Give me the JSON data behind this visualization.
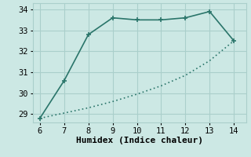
{
  "upper_x": [
    6,
    7,
    8,
    9,
    10,
    11,
    12,
    13,
    14
  ],
  "upper_y": [
    28.8,
    30.6,
    32.8,
    33.6,
    33.5,
    33.5,
    33.6,
    33.9,
    32.5
  ],
  "lower_x": [
    6,
    7,
    8,
    9,
    10,
    11,
    12,
    13,
    14
  ],
  "lower_y": [
    28.8,
    29.05,
    29.3,
    29.6,
    29.95,
    30.35,
    30.85,
    31.55,
    32.5
  ],
  "line_color": "#2a756a",
  "bg_color": "#cce8e4",
  "grid_color": "#aacfcb",
  "xlabel": "Humidex (Indice chaleur)",
  "xlim": [
    5.7,
    14.5
  ],
  "ylim": [
    28.6,
    34.3
  ],
  "xticks": [
    6,
    7,
    8,
    9,
    10,
    11,
    12,
    13,
    14
  ],
  "yticks": [
    29,
    30,
    31,
    32,
    33,
    34
  ],
  "marker": "+",
  "marker_size": 5,
  "line_width": 1.2,
  "xlabel_fontsize": 8,
  "tick_fontsize": 7.5,
  "font_family": "monospace"
}
